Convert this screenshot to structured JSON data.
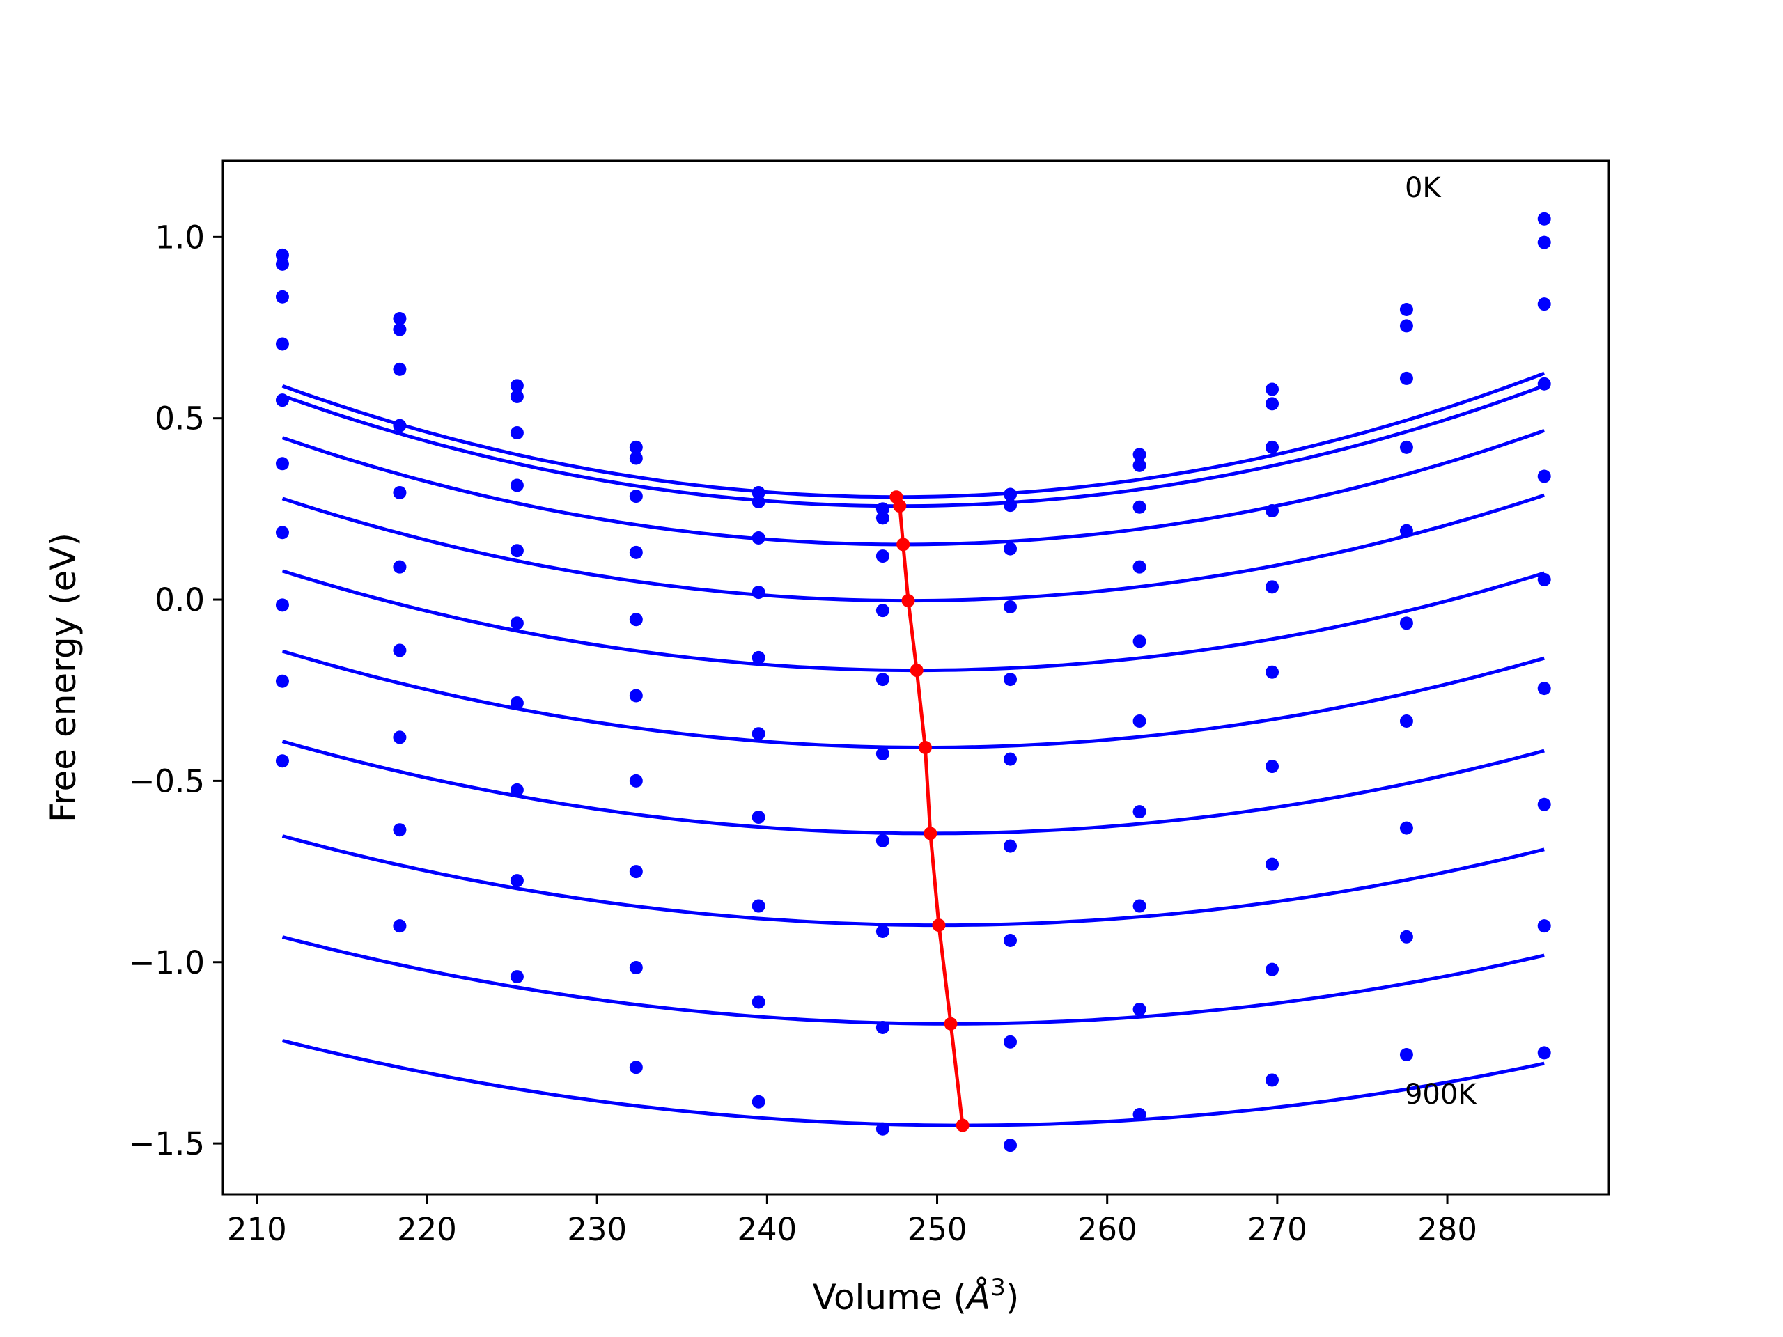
{
  "chart_data": {
    "type": "line",
    "title": "",
    "xlabel": "Volume (",
    "xlabel_unit": "Å",
    "xlabel_exp": "3",
    "xlabel_close": ")",
    "ylabel": "Free energy (eV)",
    "xlim": [
      208,
      289.5
    ],
    "ylim": [
      -1.64,
      1.21
    ],
    "xticks": [
      210,
      220,
      230,
      240,
      250,
      260,
      270,
      280
    ],
    "xtick_labels": [
      "210",
      "220",
      "230",
      "240",
      "250",
      "260",
      "270",
      "280"
    ],
    "yticks": [
      1.0,
      0.5,
      0.0,
      -0.5,
      -1.0,
      -1.5
    ],
    "ytick_labels": [
      "1.0",
      "0.5",
      "0.0",
      "−0.5",
      "−1.0",
      "−1.5"
    ],
    "grid": false,
    "annotations": [
      {
        "text": "0K",
        "x": 277.5,
        "y": 1.11
      },
      {
        "text": "900K",
        "x": 277.5,
        "y": -1.39
      }
    ],
    "colors": {
      "fit": "#0000ff",
      "points": "#0000ff",
      "minimum_line": "#ff0000",
      "axes": "#000000"
    },
    "volumes": [
      211.5,
      218.4,
      225.3,
      232.3,
      239.5,
      246.8,
      254.3,
      261.9,
      269.7,
      277.6,
      285.7
    ],
    "series": [
      {
        "points": [
          0.95,
          0.775,
          0.59,
          0.42,
          0.295,
          0.25,
          0.29,
          0.4,
          0.58,
          0.8,
          1.05
        ],
        "fit": {
          "a": 0.000235,
          "x0": 247.6,
          "c": 0.283
        }
      },
      {
        "points": [
          0.925,
          0.745,
          0.56,
          0.39,
          0.27,
          0.225,
          0.26,
          0.37,
          0.54,
          0.755,
          0.985
        ],
        "fit": {
          "a": 0.000231,
          "x0": 247.8,
          "c": 0.258
        }
      },
      {
        "points": [
          0.835,
          0.635,
          0.46,
          0.285,
          0.17,
          0.12,
          0.14,
          0.255,
          0.42,
          0.61,
          0.815
        ],
        "fit": {
          "a": 0.000221,
          "x0": 248.0,
          "c": 0.152
        }
      },
      {
        "points": [
          0.705,
          0.48,
          0.315,
          0.13,
          0.02,
          -0.03,
          -0.02,
          0.09,
          0.245,
          0.42,
          0.595
        ],
        "fit": {
          "a": 0.000208,
          "x0": 248.3,
          "c": -0.003
        }
      },
      {
        "points": [
          0.55,
          0.295,
          0.135,
          -0.055,
          -0.16,
          -0.22,
          -0.22,
          -0.115,
          0.035,
          0.19,
          0.34
        ],
        "fit": {
          "a": 0.000197,
          "x0": 248.8,
          "c": -0.195
        }
      },
      {
        "points": [
          0.375,
          0.09,
          -0.065,
          -0.265,
          -0.37,
          -0.425,
          -0.44,
          -0.335,
          -0.2,
          -0.065,
          0.055
        ],
        "fit": {
          "a": 0.000186,
          "x0": 249.3,
          "c": -0.408
        }
      },
      {
        "points": [
          0.185,
          -0.14,
          -0.285,
          -0.5,
          -0.6,
          -0.665,
          -0.68,
          -0.585,
          -0.46,
          -0.335,
          -0.245
        ],
        "fit": {
          "a": 0.000175,
          "x0": 249.6,
          "c": -0.645
        }
      },
      {
        "points": [
          -0.015,
          -0.38,
          -0.525,
          -0.75,
          -0.845,
          -0.915,
          -0.94,
          -0.845,
          -0.73,
          -0.63,
          -0.565
        ],
        "fit": {
          "a": 0.000165,
          "x0": 250.1,
          "c": -0.898
        }
      },
      {
        "points": [
          -0.225,
          -0.635,
          -0.775,
          -1.015,
          -1.11,
          -1.18,
          -1.22,
          -1.13,
          -1.02,
          -0.93,
          -0.9
        ],
        "fit": {
          "a": 0.000155,
          "x0": 250.8,
          "c": -1.17
        }
      },
      {
        "points": [
          -0.445,
          -0.9,
          -1.04,
          -1.29,
          -1.385,
          -1.46,
          -1.505,
          -1.42,
          -1.325,
          -1.255,
          -1.25
        ],
        "fit": {
          "a": 0.000146,
          "x0": 251.5,
          "c": -1.45
        }
      }
    ]
  }
}
